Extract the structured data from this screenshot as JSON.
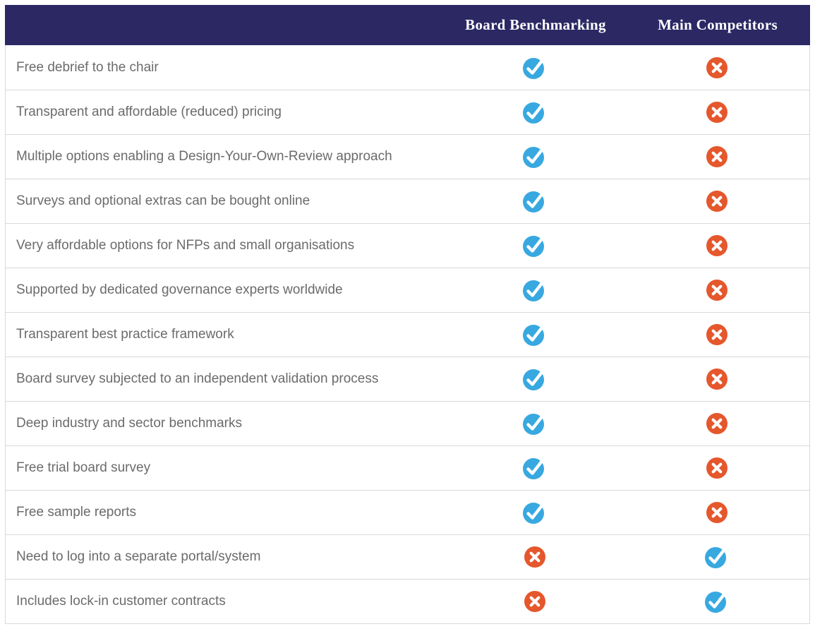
{
  "table": {
    "columns": [
      "Board Benchmarking",
      "Main Competitors"
    ],
    "rows": [
      {
        "feature": "Free debrief to the chair",
        "board_benchmarking": "check",
        "main_competitors": "cross"
      },
      {
        "feature": "Transparent and affordable (reduced) pricing",
        "board_benchmarking": "check",
        "main_competitors": "cross"
      },
      {
        "feature": "Multiple options enabling a Design-Your-Own-Review approach",
        "board_benchmarking": "check",
        "main_competitors": "cross"
      },
      {
        "feature": "Surveys and optional extras can be bought online",
        "board_benchmarking": "check",
        "main_competitors": "cross"
      },
      {
        "feature": "Very affordable options for NFPs and small organisations",
        "board_benchmarking": "check",
        "main_competitors": "cross"
      },
      {
        "feature": "Supported by dedicated governance experts worldwide",
        "board_benchmarking": "check",
        "main_competitors": "cross"
      },
      {
        "feature": "Transparent best practice framework",
        "board_benchmarking": "check",
        "main_competitors": "cross"
      },
      {
        "feature": "Board survey subjected to an independent validation process",
        "board_benchmarking": "check",
        "main_competitors": "cross"
      },
      {
        "feature": "Deep industry and sector benchmarks",
        "board_benchmarking": "check",
        "main_competitors": "cross"
      },
      {
        "feature": "Free trial board survey",
        "board_benchmarking": "check",
        "main_competitors": "cross"
      },
      {
        "feature": "Free sample reports",
        "board_benchmarking": "check",
        "main_competitors": "cross"
      },
      {
        "feature": "Need to log into a separate portal/system",
        "board_benchmarking": "cross",
        "main_competitors": "check"
      },
      {
        "feature": "Includes lock-in customer contracts",
        "board_benchmarking": "cross",
        "main_competitors": "check"
      }
    ]
  },
  "colors": {
    "header_bg": "#2b2864",
    "check": "#38a8e0",
    "cross": "#e5572c"
  }
}
